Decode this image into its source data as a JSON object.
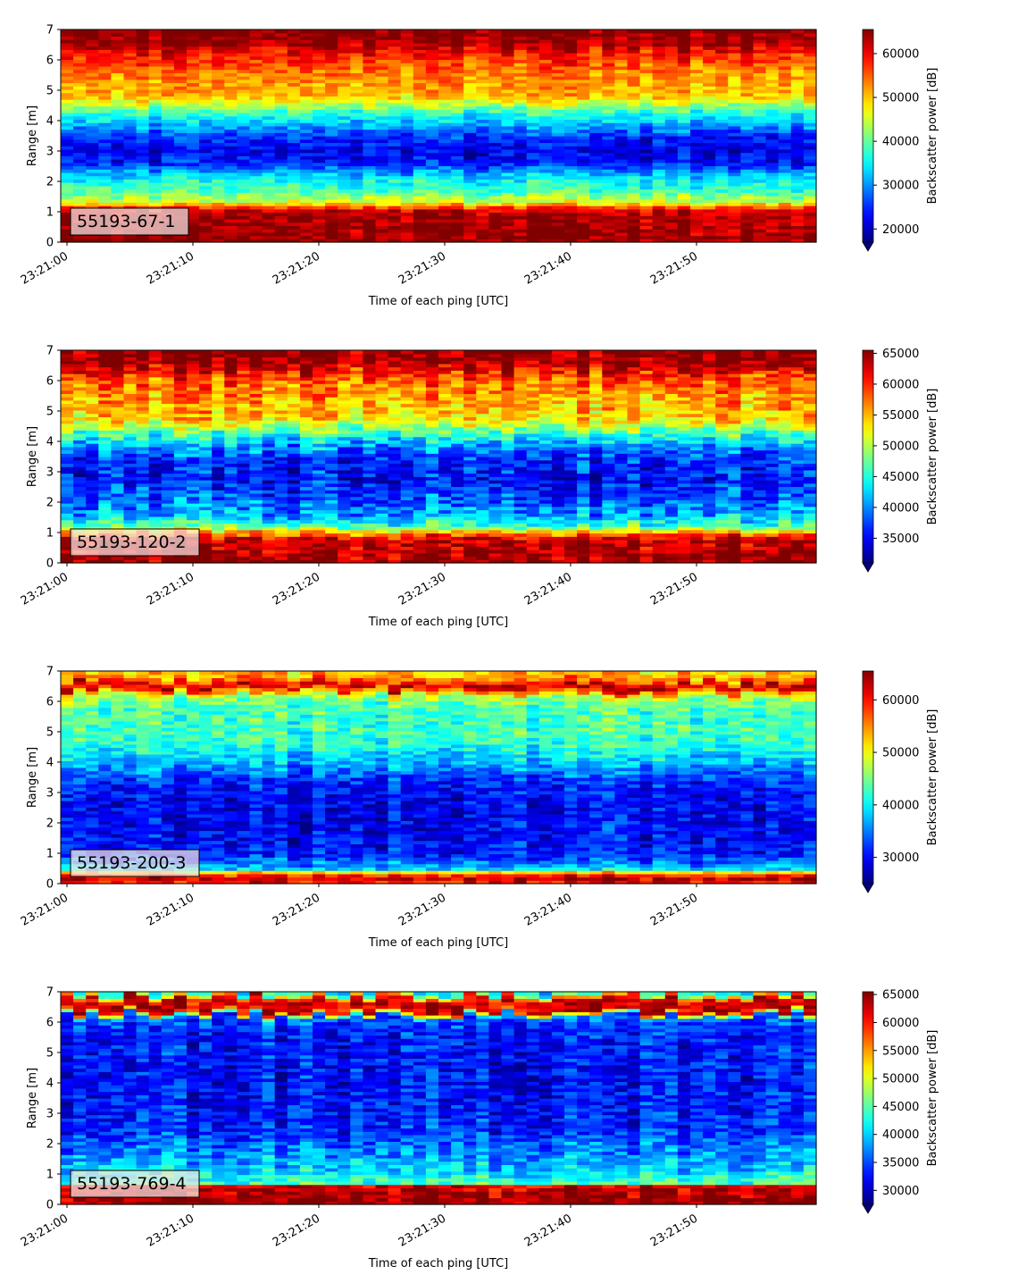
{
  "chart_data": [
    {
      "type": "heatmap",
      "label": "55193-67-1",
      "xlabel": "Time of each ping [UTC]",
      "ylabel": "Range [m]",
      "xticks": [
        "23:21:00",
        "23:21:10",
        "23:21:20",
        "23:21:30",
        "23:21:40",
        "23:21:50"
      ],
      "yticks": [
        "0",
        "1",
        "2",
        "3",
        "4",
        "5",
        "6",
        "7"
      ],
      "ylim": [
        0,
        7
      ],
      "xlim_seconds": [
        0,
        60
      ],
      "colormap": "jet",
      "colorbar_label": "Backscatter power [dB]",
      "colorbar_ticks": [
        "20000",
        "30000",
        "40000",
        "50000",
        "60000"
      ],
      "clim": [
        17000,
        65500
      ],
      "profile": [
        {
          "range": 0.0,
          "value": 65000
        },
        {
          "range": 0.25,
          "value": 64000
        },
        {
          "range": 1.0,
          "value": 63000
        },
        {
          "range": 1.15,
          "value": 56000
        },
        {
          "range": 1.35,
          "value": 45000
        },
        {
          "range": 1.7,
          "value": 38000
        },
        {
          "range": 2.0,
          "value": 36000
        },
        {
          "range": 2.3,
          "value": 31000
        },
        {
          "range": 2.6,
          "value": 24000
        },
        {
          "range": 3.0,
          "value": 22000
        },
        {
          "range": 3.4,
          "value": 24000
        },
        {
          "range": 3.8,
          "value": 30000
        },
        {
          "range": 4.3,
          "value": 38000
        },
        {
          "range": 4.8,
          "value": 50000
        },
        {
          "range": 5.5,
          "value": 53000
        },
        {
          "range": 6.2,
          "value": 58000
        },
        {
          "range": 6.6,
          "value": 64000
        },
        {
          "range": 7.0,
          "value": 65500
        }
      ]
    },
    {
      "type": "heatmap",
      "label": "55193-120-2",
      "xlabel": "Time of each ping [UTC]",
      "ylabel": "Range [m]",
      "xticks": [
        "23:21:00",
        "23:21:10",
        "23:21:20",
        "23:21:30",
        "23:21:40",
        "23:21:50"
      ],
      "yticks": [
        "0",
        "1",
        "2",
        "3",
        "4",
        "5",
        "6",
        "7"
      ],
      "ylim": [
        0,
        7
      ],
      "xlim_seconds": [
        0,
        60
      ],
      "colormap": "jet",
      "colorbar_label": "Backscatter power [dB]",
      "colorbar_ticks": [
        "35000",
        "40000",
        "45000",
        "50000",
        "55000",
        "60000",
        "65000"
      ],
      "clim": [
        31000,
        65500
      ],
      "profile": [
        {
          "range": 0.0,
          "value": 65000
        },
        {
          "range": 0.25,
          "value": 64500
        },
        {
          "range": 0.8,
          "value": 63000
        },
        {
          "range": 1.0,
          "value": 56000
        },
        {
          "range": 1.2,
          "value": 47000
        },
        {
          "range": 1.6,
          "value": 41000
        },
        {
          "range": 2.2,
          "value": 38000
        },
        {
          "range": 2.8,
          "value": 35500
        },
        {
          "range": 3.4,
          "value": 37000
        },
        {
          "range": 3.9,
          "value": 41000
        },
        {
          "range": 4.3,
          "value": 47000
        },
        {
          "range": 4.8,
          "value": 54000
        },
        {
          "range": 5.5,
          "value": 56000
        },
        {
          "range": 6.1,
          "value": 59000
        },
        {
          "range": 6.6,
          "value": 65000
        },
        {
          "range": 7.0,
          "value": 65500
        }
      ]
    },
    {
      "type": "heatmap",
      "label": "55193-200-3",
      "xlabel": "Time of each ping [UTC]",
      "ylabel": "Range [m]",
      "xticks": [
        "23:21:00",
        "23:21:10",
        "23:21:20",
        "23:21:30",
        "23:21:40",
        "23:21:50"
      ],
      "yticks": [
        "0",
        "1",
        "2",
        "3",
        "4",
        "5",
        "6",
        "7"
      ],
      "ylim": [
        0,
        7
      ],
      "xlim_seconds": [
        0,
        60
      ],
      "colormap": "jet",
      "colorbar_label": "Backscatter power [dB]",
      "colorbar_ticks": [
        "30000",
        "40000",
        "50000",
        "60000"
      ],
      "clim": [
        25000,
        65500
      ],
      "profile": [
        {
          "range": 0.0,
          "value": 60000
        },
        {
          "range": 0.2,
          "value": 63000
        },
        {
          "range": 0.35,
          "value": 55000
        },
        {
          "range": 0.5,
          "value": 38000
        },
        {
          "range": 1.0,
          "value": 31000
        },
        {
          "range": 2.0,
          "value": 30000
        },
        {
          "range": 2.8,
          "value": 30000
        },
        {
          "range": 3.4,
          "value": 32000
        },
        {
          "range": 4.0,
          "value": 38000
        },
        {
          "range": 4.8,
          "value": 43000
        },
        {
          "range": 5.8,
          "value": 43000
        },
        {
          "range": 6.2,
          "value": 48000
        },
        {
          "range": 6.5,
          "value": 64000
        },
        {
          "range": 6.8,
          "value": 54000
        },
        {
          "range": 7.0,
          "value": 52000
        }
      ]
    },
    {
      "type": "heatmap",
      "label": "55193-769-4",
      "xlabel": "Time of each ping [UTC]",
      "ylabel": "Range [m]",
      "xticks": [
        "23:21:00",
        "23:21:10",
        "23:21:20",
        "23:21:30",
        "23:21:40",
        "23:21:50"
      ],
      "yticks": [
        "0",
        "1",
        "2",
        "3",
        "4",
        "5",
        "6",
        "7"
      ],
      "ylim": [
        0,
        7
      ],
      "xlim_seconds": [
        0,
        60
      ],
      "colormap": "jet",
      "colorbar_label": "Backscatter power [dB]",
      "colorbar_ticks": [
        "30000",
        "35000",
        "40000",
        "45000",
        "50000",
        "55000",
        "60000",
        "65000"
      ],
      "clim": [
        27500,
        65500
      ],
      "profile": [
        {
          "range": 0.0,
          "value": 65000
        },
        {
          "range": 0.25,
          "value": 64500
        },
        {
          "range": 0.6,
          "value": 63000
        },
        {
          "range": 0.7,
          "value": 44000
        },
        {
          "range": 1.2,
          "value": 40000
        },
        {
          "range": 1.8,
          "value": 37000
        },
        {
          "range": 2.5,
          "value": 33500
        },
        {
          "range": 4.0,
          "value": 32500
        },
        {
          "range": 5.5,
          "value": 33000
        },
        {
          "range": 6.2,
          "value": 35500
        },
        {
          "range": 6.4,
          "value": 63000
        },
        {
          "range": 6.8,
          "value": 62000
        },
        {
          "range": 7.0,
          "value": 42000
        }
      ]
    }
  ]
}
